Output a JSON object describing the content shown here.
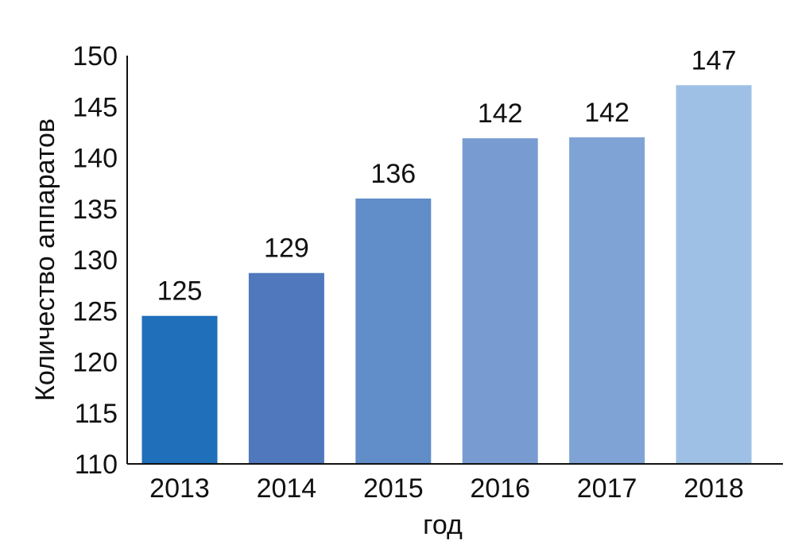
{
  "chart_data": {
    "type": "bar",
    "categories": [
      "2013",
      "2014",
      "2015",
      "2016",
      "2017",
      "2018"
    ],
    "values": [
      124.5,
      128.7,
      136.0,
      141.9,
      142.0,
      147.1
    ],
    "value_labels": [
      "125",
      "129",
      "136",
      "142",
      "142",
      "147"
    ],
    "xlabel": "год",
    "ylabel": "Количество аппаратов",
    "ylim": [
      110,
      150
    ],
    "yticks": [
      "110",
      "115",
      "120",
      "125",
      "130",
      "135",
      "140",
      "145",
      "150"
    ],
    "grid": false,
    "bar_colors": [
      "#1f6fba",
      "#4f78bd",
      "#618dc9",
      "#789cd1",
      "#7fa3d5",
      "#9ec0e5"
    ]
  }
}
